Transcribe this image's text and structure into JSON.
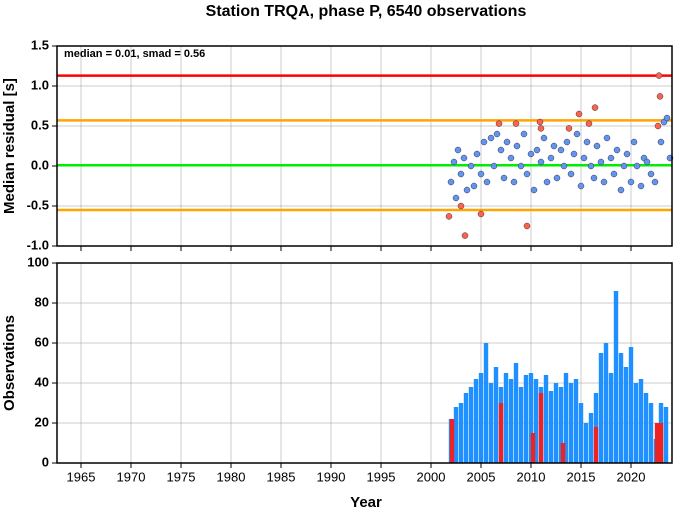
{
  "chart_data": [
    {
      "type": "scatter",
      "title": "Station TRQA, phase P, 6540 observations",
      "ylabel": "Median residual [s]",
      "annotation": "median = 0.01, smad = 0.56",
      "xlim": [
        1962.6,
        2024.1
      ],
      "xticks": [
        1965,
        1970,
        1975,
        1980,
        1985,
        1990,
        1995,
        2000,
        2005,
        2010,
        2015,
        2020
      ],
      "ylim": [
        -1.0,
        1.5
      ],
      "yticks": [
        {
          "value": -1.0,
          "label": "-1.0"
        },
        -0.5,
        {
          "value": 0.0,
          "label": "0.0"
        },
        0.5,
        {
          "value": 1.0,
          "label": "1.0"
        },
        1.5
      ],
      "grid": true,
      "hlines": [
        {
          "value": 1.13,
          "color": "#ff0000"
        },
        {
          "value": 0.57,
          "color": "#ffa500"
        },
        {
          "value": 0.01,
          "color": "#00ee00"
        },
        {
          "value": -0.55,
          "color": "#ffa500"
        }
      ],
      "series": [
        {
          "color": "#6495ed",
          "x": [
            2002.0,
            2002.3,
            2002.5,
            2002.7,
            2003.0,
            2003.3,
            2003.6,
            2004.0,
            2004.3,
            2004.6,
            2005.0,
            2005.3,
            2005.6,
            2006.0,
            2006.3,
            2006.6,
            2007.0,
            2007.3,
            2007.6,
            2008.0,
            2008.3,
            2008.6,
            2009.0,
            2009.3,
            2009.6,
            2010.0,
            2010.3,
            2010.6,
            2011.0,
            2011.3,
            2011.6,
            2012.0,
            2012.3,
            2012.6,
            2013.0,
            2013.3,
            2013.6,
            2014.0,
            2014.3,
            2014.6,
            2015.0,
            2015.3,
            2015.6,
            2016.0,
            2016.3,
            2016.6,
            2017.0,
            2017.3,
            2017.6,
            2018.0,
            2018.3,
            2018.6,
            2019.0,
            2019.3,
            2019.6,
            2020.0,
            2020.3,
            2020.6,
            2021.0,
            2021.3,
            2021.6,
            2022.0,
            2022.4,
            2023.0,
            2023.3,
            2023.6,
            2023.9
          ],
          "y": [
            -0.2,
            0.05,
            -0.4,
            0.2,
            -0.1,
            0.1,
            -0.3,
            0.0,
            -0.25,
            0.15,
            -0.1,
            0.3,
            -0.2,
            0.35,
            0.0,
            0.4,
            0.2,
            -0.15,
            0.3,
            0.1,
            -0.2,
            0.25,
            0.0,
            0.4,
            -0.1,
            0.15,
            -0.3,
            0.2,
            0.05,
            0.35,
            -0.2,
            0.1,
            0.25,
            -0.15,
            0.2,
            0.0,
            0.3,
            -0.1,
            0.15,
            0.4,
            -0.25,
            0.1,
            0.3,
            0.0,
            -0.15,
            0.25,
            0.05,
            -0.2,
            0.35,
            0.1,
            -0.1,
            0.2,
            -0.3,
            0.0,
            0.15,
            -0.2,
            0.3,
            0.0,
            -0.25,
            0.1,
            0.05,
            -0.1,
            -0.2,
            0.3,
            0.55,
            0.6,
            0.1
          ]
        },
        {
          "color": "#ff6347",
          "x": [
            2001.8,
            2003.0,
            2003.4,
            2005.0,
            2006.8,
            2008.5,
            2009.6,
            2010.9,
            2011.0,
            2013.8,
            2014.8,
            2015.8,
            2016.4,
            2022.7,
            2022.8,
            2022.9
          ],
          "y": [
            -0.63,
            -0.5,
            -0.87,
            -0.6,
            0.53,
            0.53,
            -0.75,
            0.55,
            0.47,
            0.47,
            0.65,
            0.53,
            0.73,
            0.5,
            1.13,
            0.87
          ]
        }
      ]
    },
    {
      "type": "bar",
      "ylabel": "Observations",
      "xlabel": "Year",
      "xlim": [
        1962.6,
        2024.1
      ],
      "xticks": [
        1965,
        1970,
        1975,
        1980,
        1985,
        1990,
        1995,
        2000,
        2005,
        2010,
        2015,
        2020
      ],
      "ylim": [
        0,
        100
      ],
      "yticks": [
        0,
        20,
        40,
        60,
        80,
        100
      ],
      "grid": true,
      "series": [
        {
          "color": "#1e90ff",
          "x": [
            2002.0,
            2002.5,
            2003.0,
            2003.5,
            2004.0,
            2004.5,
            2005.0,
            2005.5,
            2006.0,
            2006.5,
            2007.0,
            2007.5,
            2008.0,
            2008.5,
            2009.0,
            2009.5,
            2010.0,
            2010.5,
            2011.0,
            2011.5,
            2012.0,
            2012.5,
            2013.0,
            2013.5,
            2014.0,
            2014.5,
            2015.0,
            2015.5,
            2016.0,
            2016.5,
            2017.0,
            2017.5,
            2018.0,
            2018.5,
            2019.0,
            2019.5,
            2020.0,
            2020.5,
            2021.0,
            2021.5,
            2022.0,
            2022.5,
            2023.0,
            2023.5
          ],
          "values": [
            22,
            28,
            30,
            35,
            38,
            42,
            45,
            60,
            40,
            48,
            38,
            45,
            42,
            50,
            38,
            44,
            45,
            42,
            38,
            44,
            36,
            40,
            38,
            45,
            40,
            42,
            30,
            20,
            25,
            35,
            55,
            60,
            45,
            86,
            55,
            48,
            58,
            40,
            42,
            35,
            30,
            12,
            30,
            28
          ]
        },
        {
          "color": "#ee2222",
          "x": [
            2002.1,
            2007.0,
            2010.2,
            2011.0,
            2013.2,
            2016.5,
            2022.6,
            2023.0
          ],
          "values": [
            22,
            30,
            15,
            35,
            10,
            18,
            20,
            20
          ]
        }
      ]
    }
  ]
}
